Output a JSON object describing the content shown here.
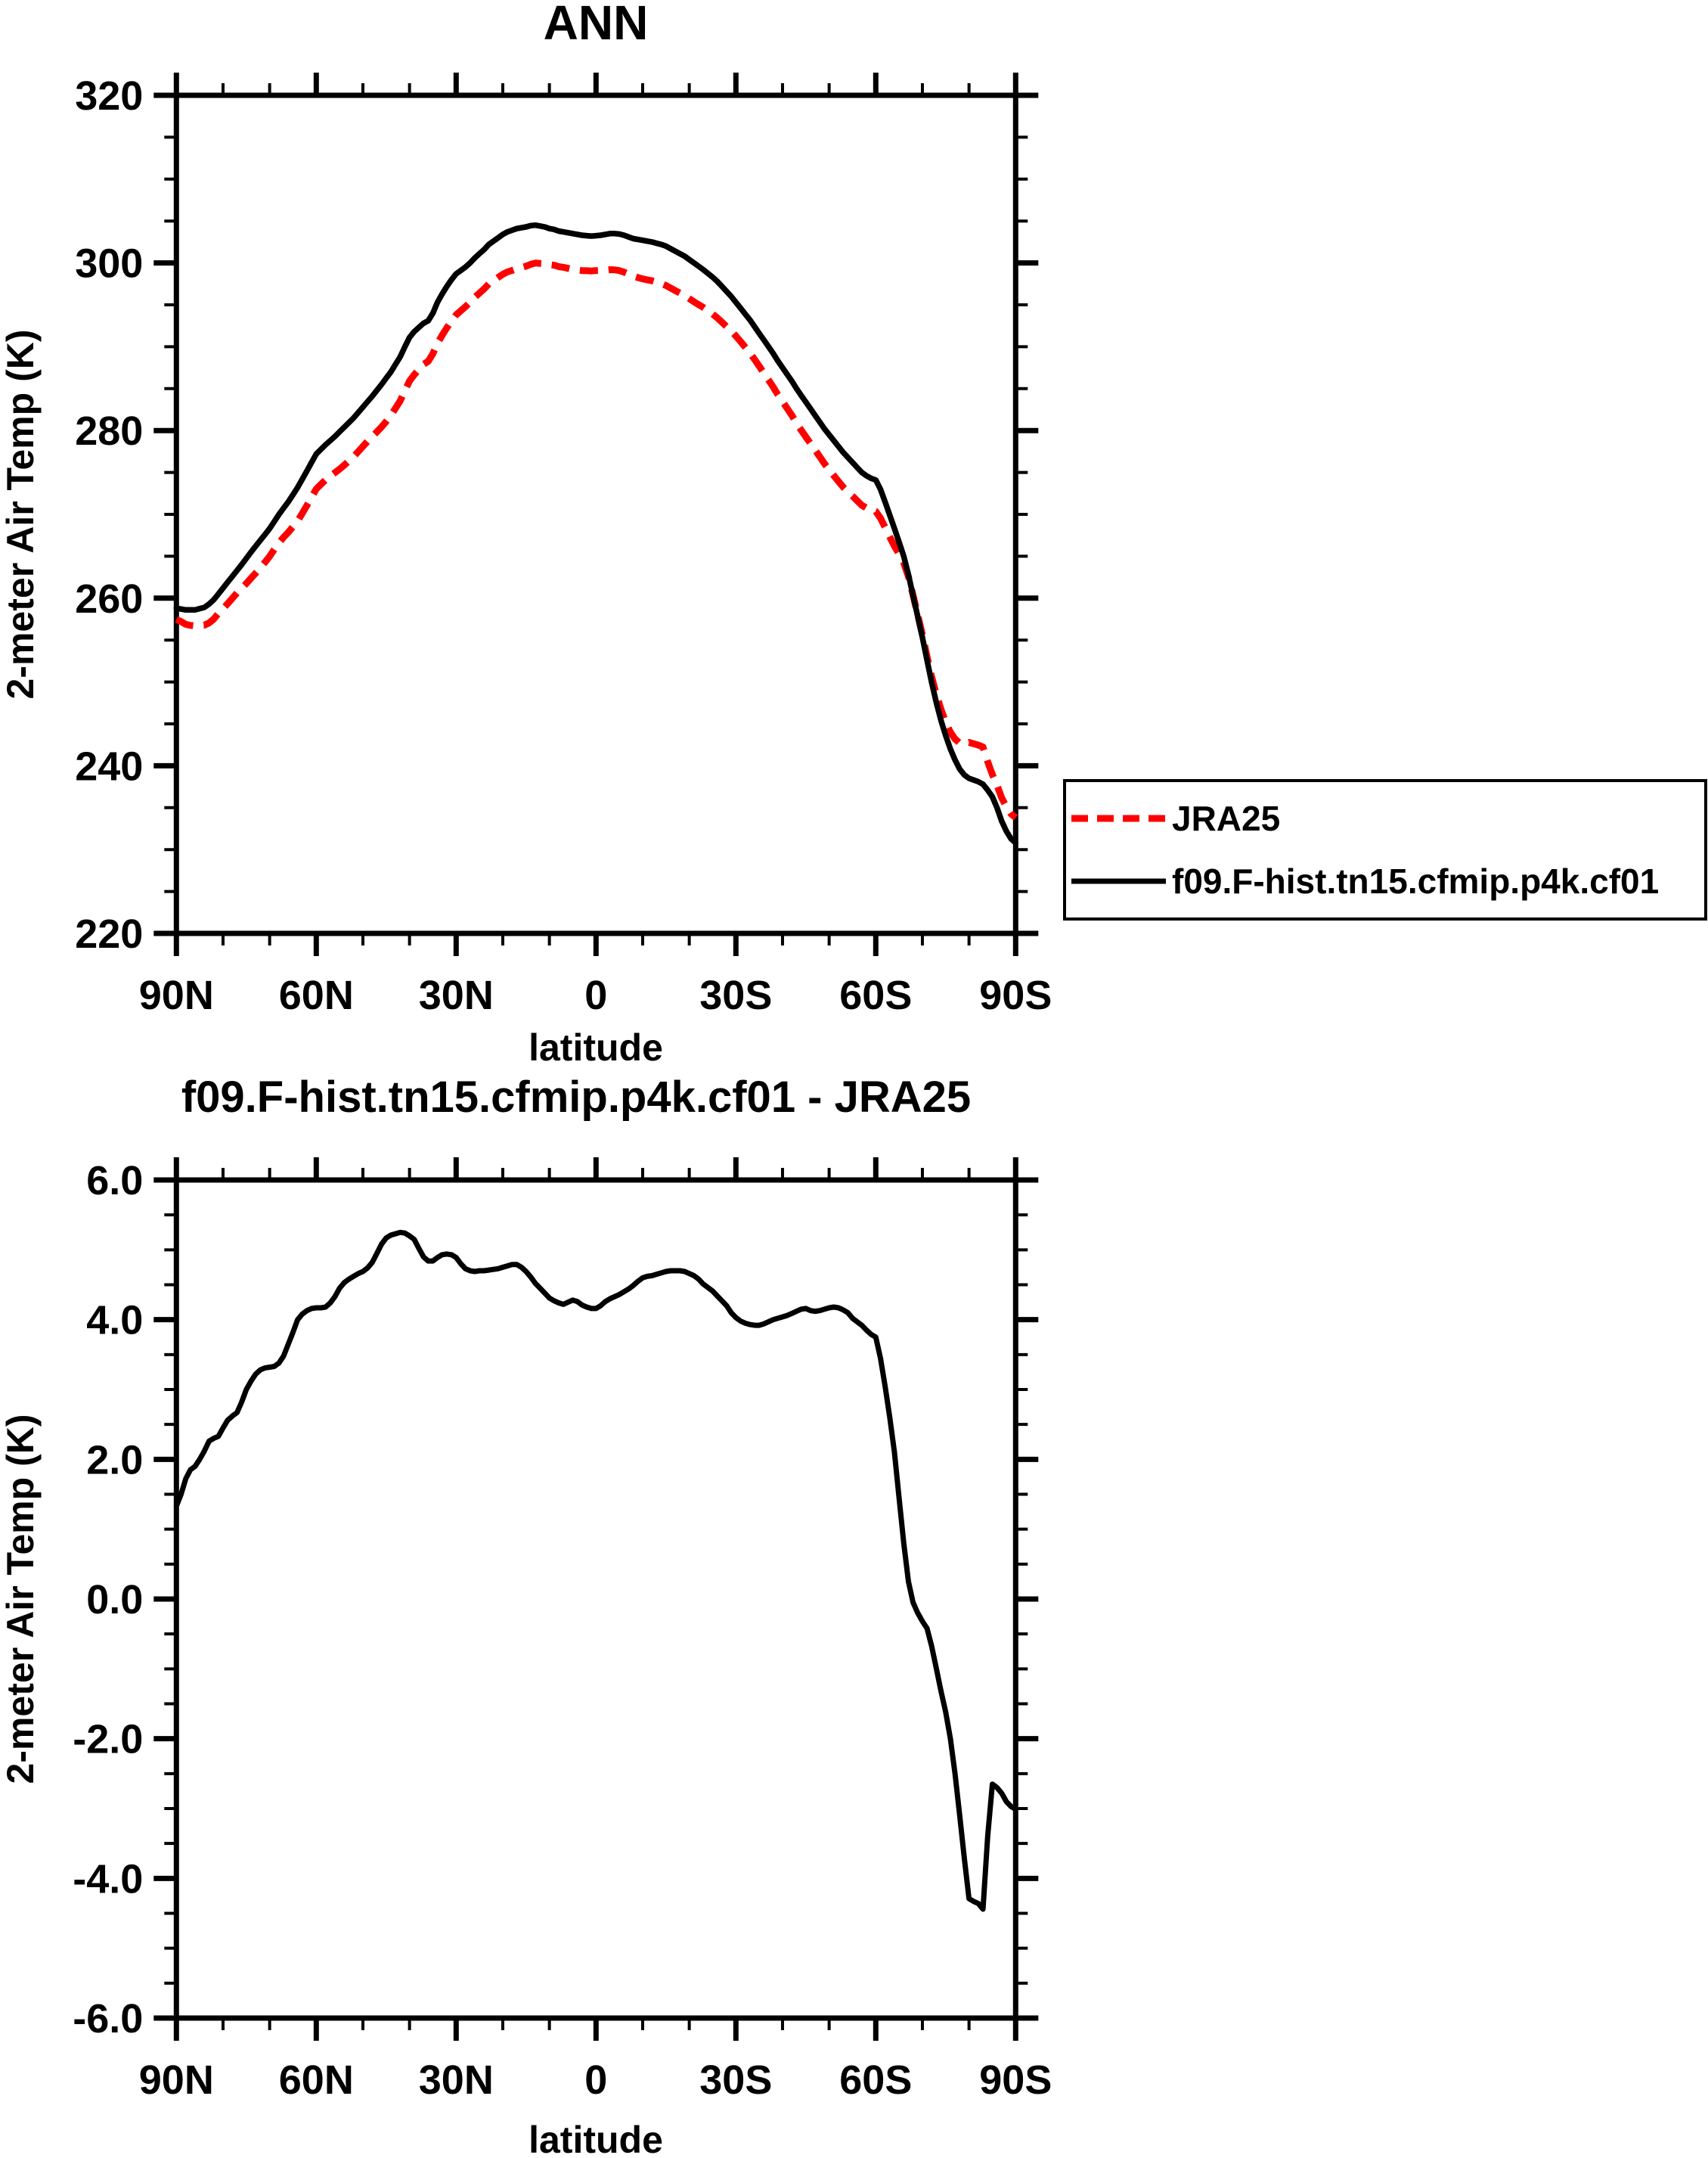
{
  "figure": {
    "top_title": "ANN",
    "bottom_title": "f09.F-hist.tn15.cfmip.p4k.cf01 - JRA25",
    "y_axis_title": "2-meter Air Temp (K)",
    "x_axis_title": "latitude"
  },
  "colors": {
    "jra25": "#ff0000",
    "model": "#000000",
    "difference": "#000000",
    "axis": "#000000",
    "background": "#ffffff"
  },
  "legend": {
    "entries": [
      {
        "label": "JRA25",
        "color": "#ff0000",
        "style": "dashed"
      },
      {
        "label": "f09.F-hist.tn15.cfmip.p4k.cf01",
        "color": "#000000",
        "style": "solid"
      }
    ]
  },
  "chart_data": [
    {
      "type": "line",
      "title": "ANN",
      "xlabel": "latitude",
      "ylabel": "2-meter Air Temp (K)",
      "ylim": [
        220,
        320
      ],
      "y_major_step": 20,
      "y_minor_step": 5,
      "x_ticks": [
        "90N",
        "60N",
        "30N",
        "0",
        "30S",
        "60S",
        "90S"
      ],
      "x_major_step_deg": 30,
      "x_minor_step_deg": 10,
      "legend_position": "outside-right-below",
      "grid": false,
      "series": [
        {
          "name": "f09.F-hist.tn15.cfmip.p4k.cf01",
          "style": "solid-black",
          "lat_start": 90,
          "lat_step": -1,
          "values": [
            258.8,
            258.7,
            258.6,
            258.6,
            258.6,
            258.75,
            258.9,
            259.3,
            259.8,
            260.5,
            261.2,
            261.9,
            262.6,
            263.3,
            264.0,
            264.75,
            265.5,
            266.2,
            266.9,
            267.6,
            268.3,
            269.15,
            270.0,
            270.75,
            271.5,
            272.35,
            273.2,
            274.2,
            275.2,
            276.2,
            277.2,
            277.75,
            278.3,
            278.8,
            279.3,
            279.85,
            280.4,
            280.95,
            281.5,
            282.15,
            282.8,
            283.45,
            284.1,
            284.8,
            285.5,
            286.25,
            287.0,
            287.9,
            288.8,
            290.0,
            291.1,
            291.8,
            292.3,
            292.8,
            293.1,
            294.0,
            295.3,
            296.3,
            297.2,
            298.0,
            298.7,
            299.1,
            299.5,
            300.0,
            300.6,
            301.1,
            301.6,
            302.2,
            302.6,
            303.0,
            303.4,
            303.7,
            303.9,
            304.1,
            304.2,
            304.3,
            304.45,
            304.5,
            304.4,
            304.3,
            304.1,
            304.0,
            303.8,
            303.7,
            303.6,
            303.5,
            303.4,
            303.3,
            303.25,
            303.2,
            303.25,
            303.3,
            303.4,
            303.5,
            303.5,
            303.45,
            303.3,
            303.1,
            302.9,
            302.8,
            302.7,
            302.6,
            302.5,
            302.35,
            302.2,
            302.0,
            301.7,
            301.4,
            301.1,
            300.8,
            300.4,
            300.0,
            299.6,
            299.2,
            298.75,
            298.3,
            297.8,
            297.2,
            296.6,
            296.0,
            295.3,
            294.6,
            293.9,
            293.2,
            292.4,
            291.6,
            290.8,
            290.0,
            289.2,
            288.3,
            287.5,
            286.7,
            285.9,
            285.0,
            284.2,
            283.4,
            282.6,
            281.8,
            281.0,
            280.2,
            279.5,
            278.8,
            278.1,
            277.4,
            276.8,
            276.2,
            275.6,
            275.0,
            274.6,
            274.3,
            274.1,
            273.0,
            271.5,
            269.9,
            268.3,
            266.7,
            265.0,
            262.8,
            260.3,
            257.8,
            255.3,
            252.6,
            249.9,
            247.5,
            245.4,
            243.6,
            242.0,
            240.7,
            239.6,
            238.9,
            238.5,
            238.3,
            238.1,
            237.8,
            237.1,
            236.3,
            235.0,
            233.4,
            232.2,
            231.3,
            230.8
          ]
        },
        {
          "name": "JRA25",
          "style": "dashed-red",
          "derived": "model_minus_difference"
        }
      ]
    },
    {
      "type": "line",
      "title": "f09.F-hist.tn15.cfmip.p4k.cf01 - JRA25",
      "xlabel": "latitude",
      "ylabel": "2-meter Air Temp (K)",
      "ylim": [
        -6.0,
        6.0
      ],
      "y_major_step": 2.0,
      "y_minor_step": 0.5,
      "x_ticks": [
        "90N",
        "60N",
        "30N",
        "0",
        "30S",
        "60S",
        "90S"
      ],
      "x_major_step_deg": 30,
      "x_minor_step_deg": 10,
      "grid": false,
      "series": [
        {
          "name": "difference",
          "style": "solid-black",
          "lat_start": 90,
          "lat_step": -1,
          "values": [
            1.33,
            1.5,
            1.72,
            1.85,
            1.9,
            2.0,
            2.12,
            2.26,
            2.3,
            2.33,
            2.45,
            2.56,
            2.62,
            2.67,
            2.82,
            3.0,
            3.12,
            3.22,
            3.28,
            3.31,
            3.32,
            3.33,
            3.38,
            3.48,
            3.65,
            3.82,
            4.0,
            4.08,
            4.13,
            4.16,
            4.17,
            4.17,
            4.18,
            4.24,
            4.33,
            4.45,
            4.53,
            4.58,
            4.62,
            4.66,
            4.69,
            4.74,
            4.82,
            4.95,
            5.08,
            5.17,
            5.21,
            5.23,
            5.25,
            5.24,
            5.2,
            5.15,
            5.02,
            4.9,
            4.84,
            4.84,
            4.89,
            4.93,
            4.94,
            4.93,
            4.89,
            4.8,
            4.73,
            4.7,
            4.69,
            4.7,
            4.7,
            4.71,
            4.72,
            4.73,
            4.75,
            4.77,
            4.79,
            4.79,
            4.75,
            4.69,
            4.61,
            4.52,
            4.45,
            4.38,
            4.31,
            4.27,
            4.24,
            4.22,
            4.25,
            4.28,
            4.26,
            4.21,
            4.18,
            4.16,
            4.16,
            4.2,
            4.26,
            4.3,
            4.33,
            4.36,
            4.4,
            4.44,
            4.49,
            4.55,
            4.6,
            4.62,
            4.63,
            4.65,
            4.67,
            4.69,
            4.7,
            4.7,
            4.7,
            4.69,
            4.66,
            4.63,
            4.58,
            4.51,
            4.46,
            4.41,
            4.34,
            4.27,
            4.2,
            4.1,
            4.03,
            3.98,
            3.95,
            3.93,
            3.92,
            3.92,
            3.94,
            3.97,
            4.0,
            4.02,
            4.04,
            4.06,
            4.09,
            4.12,
            4.15,
            4.16,
            4.13,
            4.12,
            4.13,
            4.15,
            4.17,
            4.18,
            4.17,
            4.14,
            4.1,
            4.02,
            3.97,
            3.92,
            3.85,
            3.79,
            3.75,
            3.45,
            3.05,
            2.6,
            2.1,
            1.45,
            0.8,
            0.25,
            -0.05,
            -0.2,
            -0.32,
            -0.42,
            -0.68,
            -1.0,
            -1.32,
            -1.62,
            -2.0,
            -2.5,
            -3.1,
            -3.72,
            -4.29,
            -4.33,
            -4.36,
            -4.44,
            -3.4,
            -2.65,
            -2.7,
            -2.78,
            -2.9,
            -2.97,
            -3.01
          ]
        }
      ]
    }
  ],
  "layout_values": {
    "panels": [
      {
        "name": "top",
        "x0": 233.3,
        "y0": 126,
        "x1": 1343.3,
        "y1": 1234,
        "ymin": 220,
        "ymax": 320,
        "ymajor": 20,
        "yminor": 5,
        "yfmt": "int"
      },
      {
        "name": "bottom",
        "x0": 233.3,
        "y0": 1560,
        "x1": 1343.3,
        "y1": 2668,
        "ymin": -6,
        "ymax": 6,
        "ymajor": 2,
        "yminor": 0.5,
        "yfmt": "1dp"
      }
    ]
  }
}
